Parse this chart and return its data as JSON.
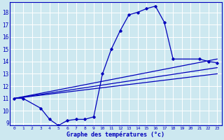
{
  "xlabel": "Graphe des températures (°c)",
  "background_color": "#cde8f0",
  "grid_color": "#ffffff",
  "line_color": "#0000bb",
  "xmin": -0.5,
  "xmax": 23.5,
  "ymin": 8.8,
  "ymax": 18.8,
  "yticks": [
    9,
    10,
    11,
    12,
    13,
    14,
    15,
    16,
    17,
    18
  ],
  "xticks": [
    0,
    1,
    2,
    3,
    4,
    5,
    6,
    7,
    8,
    9,
    10,
    11,
    12,
    13,
    14,
    15,
    16,
    17,
    18,
    19,
    20,
    21,
    22,
    23
  ],
  "main_curve": {
    "x": [
      0,
      1,
      3,
      4,
      5,
      6,
      7,
      8,
      9,
      10,
      11,
      12,
      13,
      14,
      15,
      16,
      17,
      18,
      21,
      22,
      23
    ],
    "y": [
      11.0,
      11.0,
      10.2,
      9.3,
      8.8,
      9.2,
      9.3,
      9.3,
      9.5,
      13.0,
      15.0,
      16.5,
      17.8,
      18.0,
      18.3,
      18.5,
      17.2,
      14.2,
      14.2,
      14.0,
      13.9
    ]
  },
  "line1": {
    "x": [
      0,
      23
    ],
    "y": [
      11.0,
      14.2
    ]
  },
  "line2": {
    "x": [
      0,
      23
    ],
    "y": [
      11.0,
      13.5
    ]
  },
  "line3": {
    "x": [
      0,
      23
    ],
    "y": [
      11.0,
      13.0
    ]
  }
}
